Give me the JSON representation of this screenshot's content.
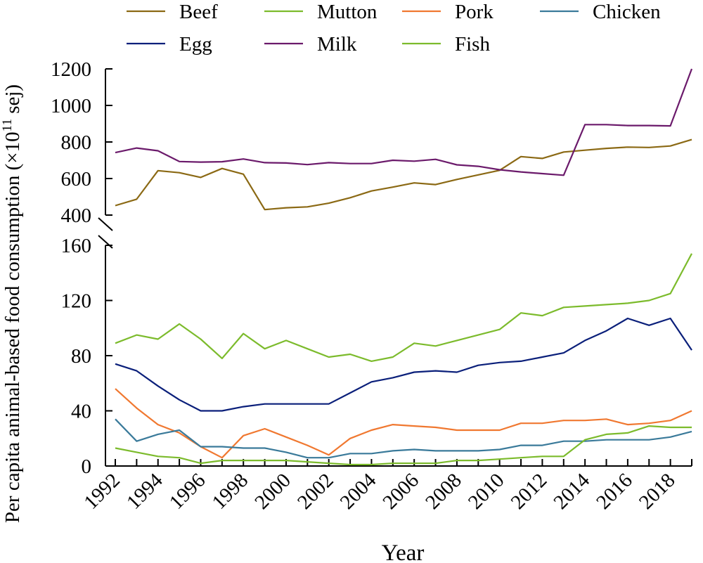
{
  "chart_data": {
    "type": "line",
    "xlabel": "Year",
    "ylabel": "Per capita animal-based food consumption (×10",
    "ylabel_sup": "11",
    "ylabel_unit": " sej)",
    "xlim": [
      1992,
      2019
    ],
    "x_ticks": [
      "1992",
      "1994",
      "1996",
      "1998",
      "2000",
      "2002",
      "2004",
      "2006",
      "2008",
      "2010",
      "2012",
      "2014",
      "2016",
      "2018"
    ],
    "x": [
      1992,
      1993,
      1994,
      1995,
      1996,
      1997,
      1998,
      1999,
      2000,
      2001,
      2002,
      2003,
      2004,
      2005,
      2006,
      2007,
      2008,
      2009,
      2010,
      2011,
      2012,
      2013,
      2014,
      2015,
      2016,
      2017,
      2018,
      2019
    ],
    "axis_break": true,
    "upper_panel": {
      "ylim": [
        400,
        1200
      ],
      "y_ticks": [
        "400",
        "600",
        "800",
        "1000",
        "1200"
      ]
    },
    "lower_panel": {
      "ylim": [
        0,
        160
      ],
      "y_ticks": [
        "0",
        "40",
        "80",
        "120",
        "160"
      ]
    },
    "legend_position": "top",
    "series": [
      {
        "name": "Beef",
        "color": "#8B6914",
        "panel": "upper",
        "values": [
          452,
          487,
          643,
          632,
          606,
          655,
          624,
          430,
          440,
          445,
          465,
          495,
          532,
          553,
          576,
          567,
          595,
          620,
          645,
          720,
          710,
          745,
          755,
          765,
          772,
          770,
          778,
          813
        ]
      },
      {
        "name": "Milk",
        "color": "#6B1A6B",
        "panel": "upper",
        "values": [
          742,
          767,
          752,
          693,
          690,
          692,
          707,
          687,
          685,
          676,
          687,
          682,
          682,
          700,
          695,
          705,
          675,
          667,
          648,
          636,
          627,
          618,
          895,
          895,
          890,
          890,
          888,
          1200
        ]
      },
      {
        "name": "Mutton",
        "color": "#7CBB2C",
        "panel": "lower",
        "values": [
          89,
          95,
          92,
          103,
          92,
          78,
          96,
          85,
          91,
          85,
          79,
          81,
          76,
          79,
          89,
          87,
          91,
          95,
          99,
          111,
          109,
          115,
          116,
          117,
          118,
          120,
          125,
          154
        ]
      },
      {
        "name": "Egg",
        "color": "#0A1F7A",
        "panel": "lower",
        "values": [
          74,
          69,
          58,
          48,
          40,
          40,
          43,
          45,
          45,
          45,
          45,
          53,
          61,
          64,
          68,
          69,
          68,
          73,
          75,
          76,
          79,
          82,
          91,
          98,
          107,
          102,
          107,
          84
        ]
      },
      {
        "name": "Pork",
        "color": "#F07830",
        "panel": "lower",
        "values": [
          56,
          42,
          30,
          24,
          14,
          6,
          22,
          27,
          21,
          15,
          8,
          20,
          26,
          30,
          29,
          28,
          26,
          26,
          26,
          31,
          31,
          33,
          33,
          34,
          30,
          31,
          33,
          40
        ]
      },
      {
        "name": "Chicken",
        "color": "#3A7A9A",
        "panel": "lower",
        "values": [
          34,
          18,
          23,
          26,
          14,
          14,
          13,
          13,
          10,
          6,
          6,
          9,
          9,
          11,
          12,
          11,
          11,
          11,
          12,
          15,
          15,
          18,
          18,
          19,
          19,
          19,
          21,
          25
        ]
      },
      {
        "name": "Fish",
        "color": "#7CBB2C",
        "panel": "lower",
        "values": [
          13,
          10,
          7,
          6,
          2,
          4,
          4,
          4,
          4,
          3,
          2,
          1,
          1,
          2,
          2,
          2,
          4,
          4,
          5,
          6,
          7,
          7,
          19,
          23,
          24,
          29,
          28,
          28
        ]
      }
    ],
    "legend_order": [
      "Beef",
      "Mutton",
      "Pork",
      "Chicken",
      "Egg",
      "Milk",
      "Fish"
    ]
  }
}
